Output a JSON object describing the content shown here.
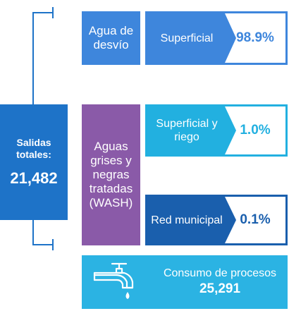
{
  "totals": {
    "label": "Salidas totales:",
    "value": "21,482"
  },
  "desvio": {
    "label": "Agua de desvío"
  },
  "wash": {
    "label": "Aguas grises y negras tratadas (WASH)"
  },
  "rows": [
    {
      "name": "Superficial",
      "pct": "98.9%"
    },
    {
      "name": "Superficial y riego",
      "pct": "1.0%"
    },
    {
      "name": "Red municipal",
      "pct": "0.1%"
    }
  ],
  "process": {
    "label": "Consumo de procesos",
    "value": "25,291",
    "icon": "faucet-icon"
  },
  "colors": {
    "bracket": "#1e73c8",
    "desvio": "#3e86dc",
    "wash": "#8a5aa8",
    "riego": "#22b0e0",
    "municipal": "#1a5fad",
    "process": "#2bb3e3"
  }
}
